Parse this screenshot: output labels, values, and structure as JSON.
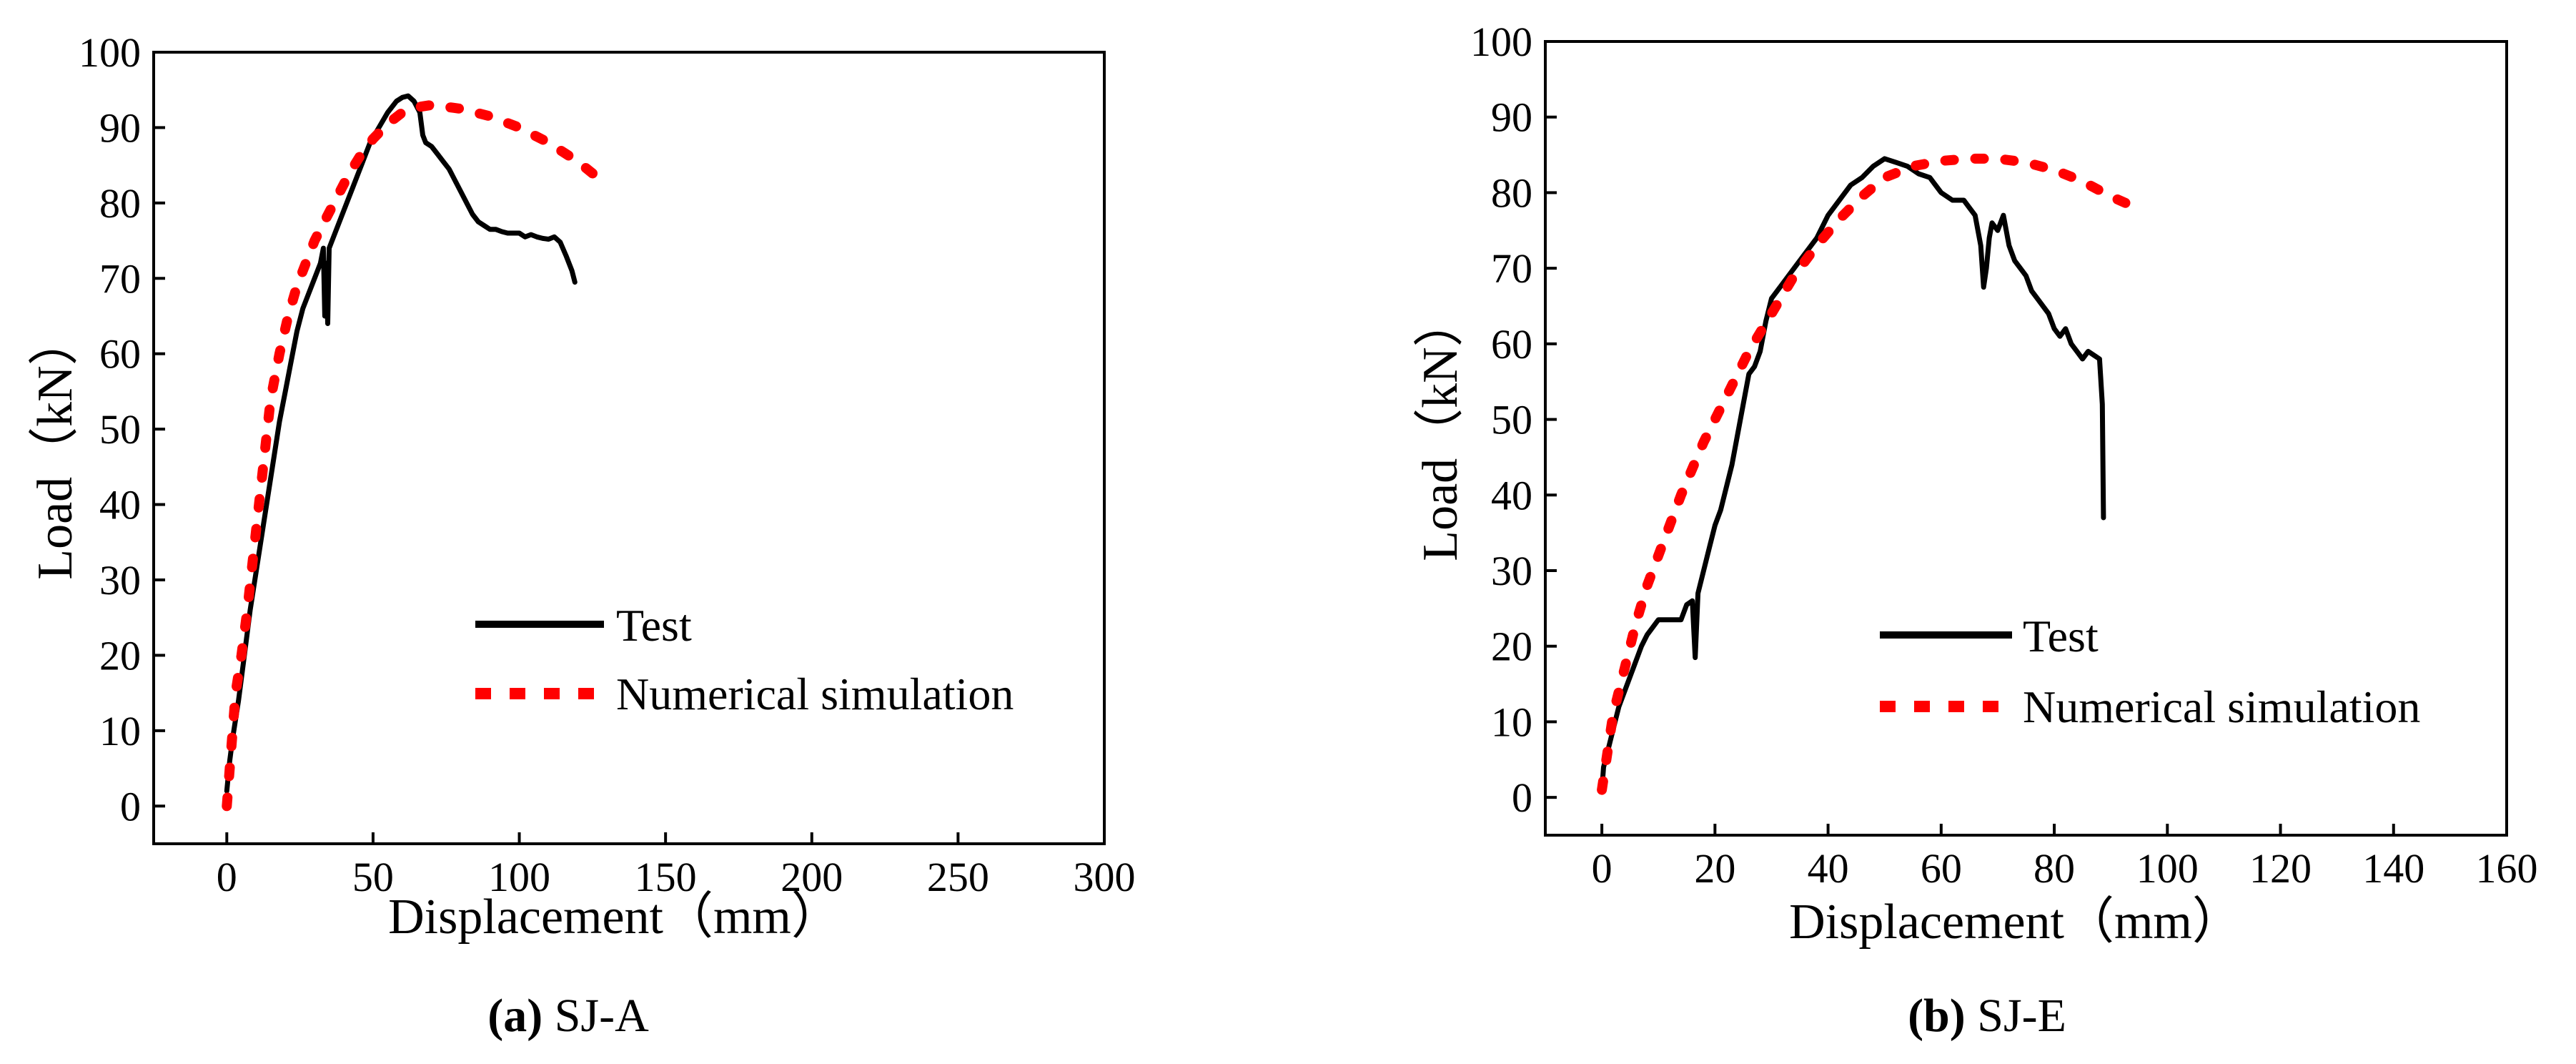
{
  "chart_data": [
    {
      "type": "line",
      "caption_letter": "(a)",
      "caption_name": " SJ-A",
      "xlabel": "Displacement（mm）",
      "ylabel": "Load（kN）",
      "xlim": [
        -25,
        300
      ],
      "ylim": [
        -5,
        100
      ],
      "xticks": [
        0,
        50,
        100,
        150,
        200,
        250,
        300
      ],
      "yticks": [
        0,
        10,
        20,
        30,
        40,
        50,
        60,
        70,
        80,
        90,
        100
      ],
      "legend_position": "lower-right",
      "series": [
        {
          "name": "Test",
          "color": "#000000",
          "style": "solid",
          "points": [
            [
              0,
              2
            ],
            [
              1,
              6
            ],
            [
              2,
              9
            ],
            [
              4,
              14
            ],
            [
              6,
              20
            ],
            [
              8,
              26
            ],
            [
              10,
              31
            ],
            [
              12,
              36
            ],
            [
              14,
              41
            ],
            [
              16,
              46
            ],
            [
              18,
              51
            ],
            [
              20,
              55
            ],
            [
              22,
              59
            ],
            [
              24,
              63
            ],
            [
              26,
              66
            ],
            [
              28,
              68
            ],
            [
              30,
              70
            ],
            [
              32,
              72
            ],
            [
              33,
              74
            ],
            [
              33.5,
              65
            ],
            [
              34,
              72
            ],
            [
              34.5,
              64
            ],
            [
              35,
              74
            ],
            [
              37,
              76
            ],
            [
              40,
              79
            ],
            [
              43,
              82
            ],
            [
              46,
              85
            ],
            [
              49,
              88
            ],
            [
              52,
              90
            ],
            [
              55,
              92
            ],
            [
              58,
              93.5
            ],
            [
              60,
              94
            ],
            [
              62,
              94.2
            ],
            [
              64,
              93.5
            ],
            [
              66,
              92
            ],
            [
              67,
              89
            ],
            [
              68,
              88
            ],
            [
              70,
              87.5
            ],
            [
              72,
              86.5
            ],
            [
              74,
              85.5
            ],
            [
              76,
              84.5
            ],
            [
              78,
              83
            ],
            [
              80,
              81.5
            ],
            [
              82,
              80
            ],
            [
              84,
              78.5
            ],
            [
              86,
              77.5
            ],
            [
              88,
              77
            ],
            [
              90,
              76.5
            ],
            [
              92,
              76.5
            ],
            [
              94,
              76.2
            ],
            [
              96,
              76
            ],
            [
              98,
              76
            ],
            [
              100,
              76
            ],
            [
              102,
              75.5
            ],
            [
              104,
              75.8
            ],
            [
              106,
              75.5
            ],
            [
              108,
              75.3
            ],
            [
              110,
              75.2
            ],
            [
              112,
              75.5
            ],
            [
              114,
              74.8
            ],
            [
              116,
              73
            ],
            [
              118,
              71
            ],
            [
              119,
              69.5
            ]
          ]
        },
        {
          "name": "Numerical simulation",
          "color": "#ff0000",
          "style": "dotted",
          "points": [
            [
              0,
              0
            ],
            [
              1,
              5
            ],
            [
              2,
              10
            ],
            [
              3,
              15
            ],
            [
              5,
              20
            ],
            [
              7,
              26
            ],
            [
              9,
              33
            ],
            [
              11,
              40
            ],
            [
              13,
              47
            ],
            [
              15,
              54
            ],
            [
              18,
              60
            ],
            [
              21,
              65
            ],
            [
              24,
              69
            ],
            [
              27,
              72
            ],
            [
              30,
              75
            ],
            [
              34,
              78
            ],
            [
              38,
              81
            ],
            [
              42,
              84
            ],
            [
              46,
              86.5
            ],
            [
              50,
              88.5
            ],
            [
              55,
              90.5
            ],
            [
              60,
              92
            ],
            [
              65,
              92.7
            ],
            [
              70,
              93
            ],
            [
              80,
              92.5
            ],
            [
              90,
              91.5
            ],
            [
              100,
              90
            ],
            [
              110,
              88
            ],
            [
              120,
              85.5
            ],
            [
              128,
              83
            ]
          ]
        }
      ]
    },
    {
      "type": "line",
      "caption_letter": "(b)",
      "caption_name": " SJ-E",
      "xlabel": "Displacement（mm）",
      "ylabel": "Load（kN）",
      "xlim": [
        -10,
        160
      ],
      "ylim": [
        -5,
        100
      ],
      "xticks": [
        0,
        20,
        40,
        60,
        80,
        100,
        120,
        140,
        160
      ],
      "yticks": [
        0,
        10,
        20,
        30,
        40,
        50,
        60,
        70,
        80,
        90,
        100
      ],
      "legend_position": "lower-right",
      "series": [
        {
          "name": "Test",
          "color": "#000000",
          "style": "solid",
          "points": [
            [
              0,
              1
            ],
            [
              0.3,
              4
            ],
            [
              1,
              6
            ],
            [
              2,
              9
            ],
            [
              3,
              12
            ],
            [
              4,
              14
            ],
            [
              5,
              16
            ],
            [
              6,
              18
            ],
            [
              7,
              20
            ],
            [
              8,
              21.5
            ],
            [
              9,
              22.5
            ],
            [
              10,
              23.5
            ],
            [
              12,
              23.5
            ],
            [
              14,
              23.5
            ],
            [
              15,
              25.5
            ],
            [
              16,
              26
            ],
            [
              16.5,
              18.5
            ],
            [
              17,
              27
            ],
            [
              18,
              30
            ],
            [
              19,
              33
            ],
            [
              20,
              36
            ],
            [
              21,
              38
            ],
            [
              22,
              41
            ],
            [
              23,
              44
            ],
            [
              24,
              48
            ],
            [
              25,
              52
            ],
            [
              26,
              56
            ],
            [
              27,
              57
            ],
            [
              28,
              59
            ],
            [
              29,
              63
            ],
            [
              30,
              66
            ],
            [
              31,
              67
            ],
            [
              32,
              68
            ],
            [
              33,
              69
            ],
            [
              34,
              70
            ],
            [
              36,
              72
            ],
            [
              38,
              74
            ],
            [
              40,
              77
            ],
            [
              42,
              79
            ],
            [
              44,
              81
            ],
            [
              46,
              82
            ],
            [
              48,
              83.5
            ],
            [
              50,
              84.5
            ],
            [
              52,
              84
            ],
            [
              54,
              83.5
            ],
            [
              56,
              82.5
            ],
            [
              58,
              82
            ],
            [
              59,
              81
            ],
            [
              60,
              80
            ],
            [
              62,
              79
            ],
            [
              64,
              79
            ],
            [
              65,
              78
            ],
            [
              66,
              77
            ],
            [
              67,
              73
            ],
            [
              67.5,
              67.5
            ],
            [
              68,
              70
            ],
            [
              68.5,
              74
            ],
            [
              69,
              76
            ],
            [
              70,
              75
            ],
            [
              71,
              77
            ],
            [
              72,
              73
            ],
            [
              73,
              71
            ],
            [
              74,
              70
            ],
            [
              75,
              69
            ],
            [
              76,
              67
            ],
            [
              77,
              66
            ],
            [
              78,
              65
            ],
            [
              79,
              64
            ],
            [
              80,
              62
            ],
            [
              81,
              61
            ],
            [
              82,
              62
            ],
            [
              83,
              60
            ],
            [
              84,
              59
            ],
            [
              85,
              58
            ],
            [
              86,
              59
            ],
            [
              87,
              58.5
            ],
            [
              88,
              58
            ],
            [
              88.5,
              52
            ],
            [
              88.7,
              37
            ]
          ]
        },
        {
          "name": "Numerical simulation",
          "color": "#ff0000",
          "style": "dotted",
          "points": [
            [
              0,
              1
            ],
            [
              1,
              6
            ],
            [
              2,
              11
            ],
            [
              4,
              17
            ],
            [
              6,
              23
            ],
            [
              8,
              28
            ],
            [
              11,
              34
            ],
            [
              14,
              40
            ],
            [
              18,
              47
            ],
            [
              22,
              53
            ],
            [
              26,
              59
            ],
            [
              30,
              64
            ],
            [
              34,
              69
            ],
            [
              38,
              73
            ],
            [
              42,
              76.5
            ],
            [
              46,
              79.5
            ],
            [
              50,
              82
            ],
            [
              55,
              83.5
            ],
            [
              60,
              84.2
            ],
            [
              65,
              84.5
            ],
            [
              70,
              84.5
            ],
            [
              75,
              84
            ],
            [
              80,
              83
            ],
            [
              85,
              81.5
            ],
            [
              90,
              79.5
            ],
            [
              93,
              78.5
            ]
          ]
        }
      ]
    }
  ]
}
